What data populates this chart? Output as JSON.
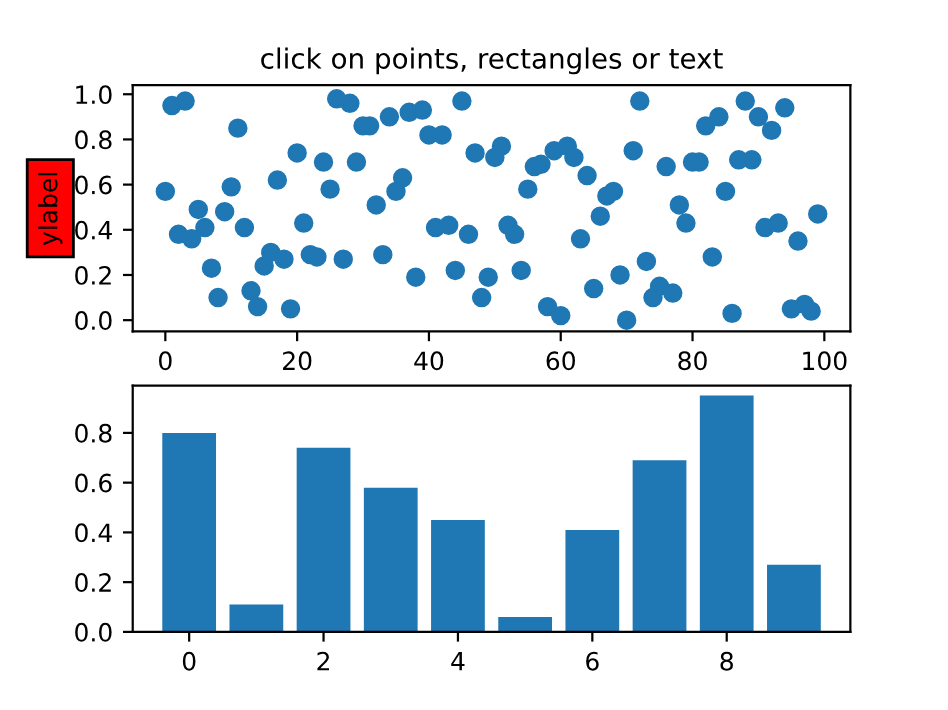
{
  "chart_data": [
    {
      "type": "scatter",
      "title": "click on points, rectangles or text",
      "ylabel": "ylabel",
      "x": [
        0,
        1,
        2,
        3,
        4,
        5,
        6,
        7,
        8,
        9,
        10,
        11,
        12,
        13,
        14,
        15,
        16,
        17,
        18,
        19,
        20,
        21,
        22,
        23,
        24,
        25,
        26,
        27,
        28,
        29,
        30,
        31,
        32,
        33,
        34,
        35,
        36,
        37,
        38,
        39,
        40,
        41,
        42,
        43,
        44,
        45,
        46,
        47,
        48,
        49,
        50,
        51,
        52,
        53,
        54,
        55,
        56,
        57,
        58,
        59,
        60,
        61,
        62,
        63,
        64,
        65,
        66,
        67,
        68,
        69,
        70,
        71,
        72,
        73,
        74,
        75,
        76,
        77,
        78,
        79,
        80,
        81,
        82,
        83,
        84,
        85,
        86,
        87,
        88,
        89,
        90,
        91,
        92,
        93,
        94,
        95,
        96,
        97,
        98,
        99
      ],
      "series": [
        {
          "color": "#1f77b4",
          "values": [
            0.57,
            0.95,
            0.38,
            0.97,
            0.36,
            0.49,
            0.41,
            0.23,
            0.1,
            0.48,
            0.59,
            0.85,
            0.41,
            0.13,
            0.06,
            0.24,
            0.3,
            0.62,
            0.27,
            0.05,
            0.74,
            0.43,
            0.29,
            0.28,
            0.7,
            0.58,
            0.98,
            0.27,
            0.96,
            0.7,
            0.86,
            0.86,
            0.51,
            0.29,
            0.9,
            0.57,
            0.63,
            0.92,
            0.19,
            0.93,
            0.82,
            0.41,
            0.82,
            0.42,
            0.22,
            0.97,
            0.38,
            0.74,
            0.1,
            0.19,
            0.72,
            0.77,
            0.42,
            0.38,
            0.22,
            0.58,
            0.68,
            0.69,
            0.06,
            0.75,
            0.02,
            0.77,
            0.72,
            0.36,
            0.64,
            0.14,
            0.46,
            0.55,
            0.57,
            0.2,
            0.0,
            0.75,
            0.97,
            0.26,
            0.1,
            0.15,
            0.68,
            0.12,
            0.51,
            0.43,
            0.7,
            0.7,
            0.86,
            0.28,
            0.9,
            0.57,
            0.03,
            0.71,
            0.97,
            0.71,
            0.9,
            0.41,
            0.84,
            0.43,
            0.94,
            0.05,
            0.35,
            0.07,
            0.04,
            0.47
          ]
        }
      ],
      "marker": "circle",
      "xlim": [
        -4.95,
        103.95
      ],
      "ylim": [
        -0.05,
        1.04
      ],
      "xticks": [
        0,
        20,
        40,
        60,
        80,
        100
      ],
      "yticks": [
        {
          "value": 0,
          "label": "0.0"
        },
        {
          "value": 0.2,
          "label": "0.2"
        },
        {
          "value": 0.4,
          "label": "0.4"
        },
        {
          "value": 0.6,
          "label": "0.6"
        },
        {
          "value": 0.8,
          "label": "0.8"
        },
        {
          "value": 1,
          "label": "1.0"
        }
      ],
      "grid": false,
      "legend": false
    },
    {
      "type": "bar",
      "x": [
        0,
        1,
        2,
        3,
        4,
        5,
        6,
        7,
        8,
        9
      ],
      "series": [
        {
          "color": "#1f77b4",
          "values": [
            0.8,
            0.11,
            0.74,
            0.58,
            0.45,
            0.06,
            0.41,
            0.69,
            0.95,
            0.27
          ]
        }
      ],
      "xlim": [
        -0.84,
        9.84
      ],
      "ylim": [
        0,
        0.99
      ],
      "xticks": [
        0,
        2,
        4,
        6,
        8
      ],
      "yticks": [
        {
          "value": 0,
          "label": "0.0"
        },
        {
          "value": 0.2,
          "label": "0.2"
        },
        {
          "value": 0.4,
          "label": "0.4"
        },
        {
          "value": 0.6,
          "label": "0.6"
        },
        {
          "value": 0.8,
          "label": "0.8"
        }
      ],
      "grid": false,
      "legend": false
    }
  ]
}
